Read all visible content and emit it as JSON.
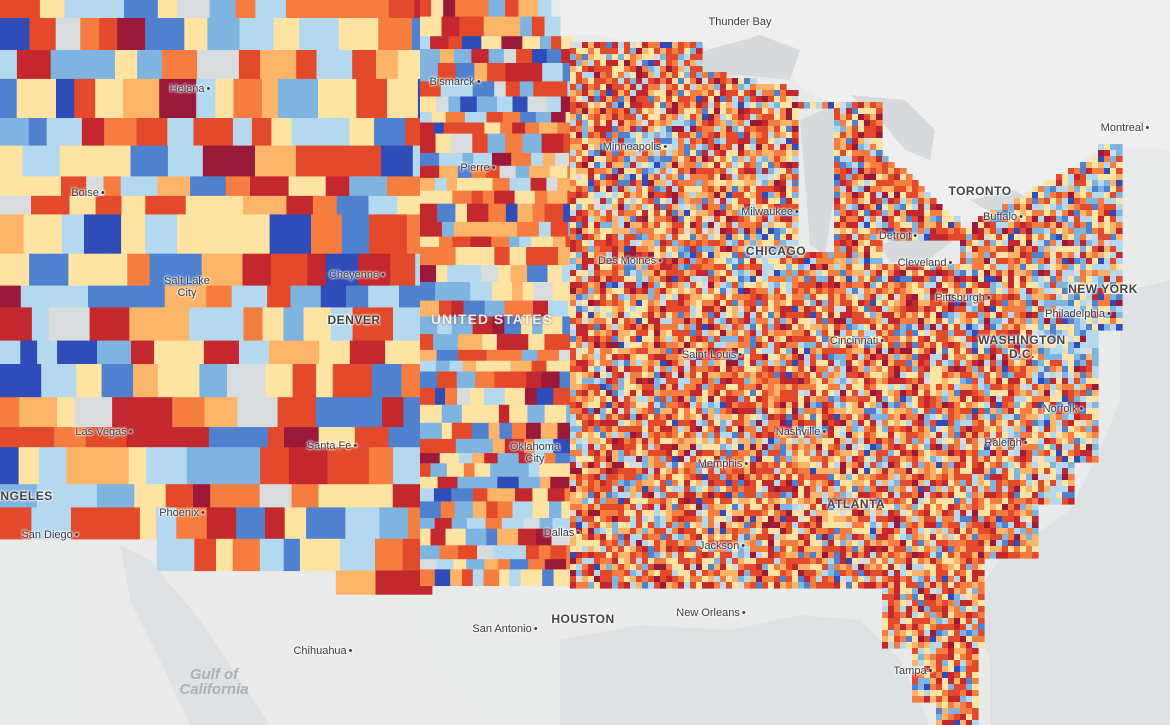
{
  "map": {
    "palette": [
      "#2f4cb8",
      "#4f81cf",
      "#7fb3e0",
      "#b4d8ee",
      "#d9dcdf",
      "#fde4a3",
      "#fcb469",
      "#f57d3f",
      "#e24a2b",
      "#c3282f",
      "#9b1a3a"
    ],
    "labels": [
      {
        "text": "Thunder Bay",
        "kind": "city",
        "name": "label-thunder-bay"
      },
      {
        "text": "Bismarck",
        "kind": "city",
        "name": "label-bismarck"
      },
      {
        "text": "Helena",
        "kind": "city",
        "name": "label-helena"
      },
      {
        "text": "Montreal",
        "kind": "city",
        "name": "label-montreal"
      },
      {
        "text": "Minneapolis",
        "kind": "city",
        "name": "label-minneapolis"
      },
      {
        "text": "Pierre",
        "kind": "city",
        "name": "label-pierre"
      },
      {
        "text": "Boise",
        "kind": "city",
        "name": "label-boise"
      },
      {
        "text": "TORONTO",
        "kind": "major",
        "name": "label-toronto"
      },
      {
        "text": "Milwaukee",
        "kind": "city",
        "name": "label-milwaukee"
      },
      {
        "text": "Buffalo",
        "kind": "city",
        "name": "label-buffalo"
      },
      {
        "text": "Detroit",
        "kind": "city",
        "name": "label-detroit"
      },
      {
        "text": "CHICAGO",
        "kind": "major",
        "name": "label-chicago"
      },
      {
        "text": "Des Moines",
        "kind": "city",
        "name": "label-des-moines"
      },
      {
        "text": "Cleveland",
        "kind": "city",
        "name": "label-cleveland"
      },
      {
        "text": "Cheyenne",
        "kind": "city",
        "name": "label-cheyenne"
      },
      {
        "text": "Salt Lake City",
        "kind": "city",
        "name": "label-salt-lake-city"
      },
      {
        "text": "NEW YORK",
        "kind": "major",
        "name": "label-new-york"
      },
      {
        "text": "Pittsburgh",
        "kind": "city",
        "name": "label-pittsburgh"
      },
      {
        "text": "Philadelphia",
        "kind": "city",
        "name": "label-philadelphia"
      },
      {
        "text": "DENVER",
        "kind": "major",
        "name": "label-denver"
      },
      {
        "text": "UNITED STATES",
        "kind": "country",
        "name": "label-united-states"
      },
      {
        "text": "Cincinnati",
        "kind": "city",
        "name": "label-cincinnati"
      },
      {
        "text": "WASHINGTON D.C.",
        "kind": "major",
        "name": "label-washington-dc"
      },
      {
        "text": "Saint Louis",
        "kind": "city",
        "name": "label-saint-louis"
      },
      {
        "text": "Norfolk",
        "kind": "city",
        "name": "label-norfolk"
      },
      {
        "text": "Las Vegas",
        "kind": "city",
        "name": "label-las-vegas"
      },
      {
        "text": "Nashville",
        "kind": "city",
        "name": "label-nashville"
      },
      {
        "text": "Santa Fe",
        "kind": "city",
        "name": "label-santa-fe"
      },
      {
        "text": "Raleigh",
        "kind": "city",
        "name": "label-raleigh"
      },
      {
        "text": "Oklahoma City",
        "kind": "city",
        "name": "label-oklahoma-city"
      },
      {
        "text": "Memphis",
        "kind": "city",
        "name": "label-memphis"
      },
      {
        "text": "ANGELES",
        "kind": "major",
        "name": "label-los-angeles"
      },
      {
        "text": "ATLANTA",
        "kind": "major",
        "name": "label-atlanta"
      },
      {
        "text": "Phoenix",
        "kind": "city",
        "name": "label-phoenix"
      },
      {
        "text": "San Diego",
        "kind": "city",
        "name": "label-san-diego"
      },
      {
        "text": "Dallas",
        "kind": "city",
        "name": "label-dallas"
      },
      {
        "text": "Jackson",
        "kind": "city",
        "name": "label-jackson"
      },
      {
        "text": "New Orleans",
        "kind": "city",
        "name": "label-new-orleans"
      },
      {
        "text": "HOUSTON",
        "kind": "major",
        "name": "label-houston"
      },
      {
        "text": "San Antonio",
        "kind": "city",
        "name": "label-san-antonio"
      },
      {
        "text": "Chihuahua",
        "kind": "city",
        "name": "label-chihuahua"
      },
      {
        "text": "Gulf of California",
        "kind": "water",
        "name": "label-gulf-of-california"
      },
      {
        "text": "Tampa",
        "kind": "city",
        "name": "label-tampa"
      }
    ]
  }
}
